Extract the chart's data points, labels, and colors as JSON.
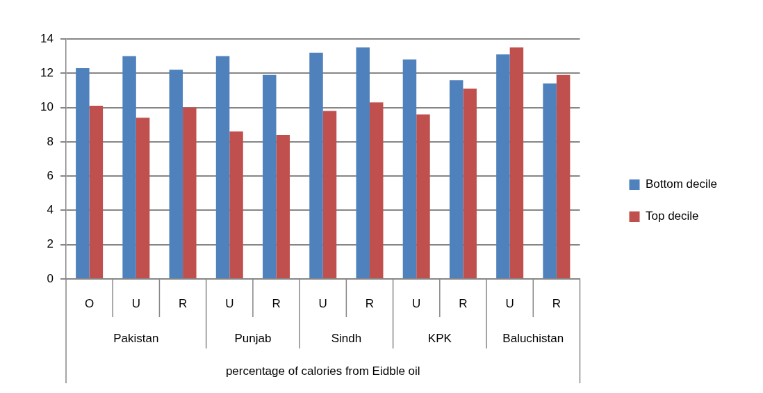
{
  "chart_data": {
    "type": "bar",
    "xlabel": "percentage of calories from Eidble oil",
    "categories": [
      "O",
      "U",
      "R",
      "U",
      "R",
      "U",
      "R",
      "U",
      "R",
      "U",
      "R"
    ],
    "series": [
      {
        "name": "Bottom decile",
        "color": "#4f81bd",
        "values": [
          12.3,
          13.0,
          12.2,
          13.0,
          11.9,
          13.2,
          13.5,
          12.8,
          11.6,
          13.1,
          11.4
        ]
      },
      {
        "name": "Top decile",
        "color": "#c0504d",
        "values": [
          10.1,
          9.4,
          10.0,
          8.6,
          8.4,
          9.8,
          10.3,
          9.6,
          11.1,
          13.5,
          11.9
        ]
      }
    ],
    "ylim": [
      0,
      14
    ],
    "yticks": [
      0,
      2,
      4,
      6,
      8,
      10,
      12,
      14
    ],
    "grid": "y",
    "legend": "right",
    "annotations": [
      "Pakistan",
      "Punjab",
      "Sindh",
      "KPK",
      "Baluchistan"
    ]
  }
}
